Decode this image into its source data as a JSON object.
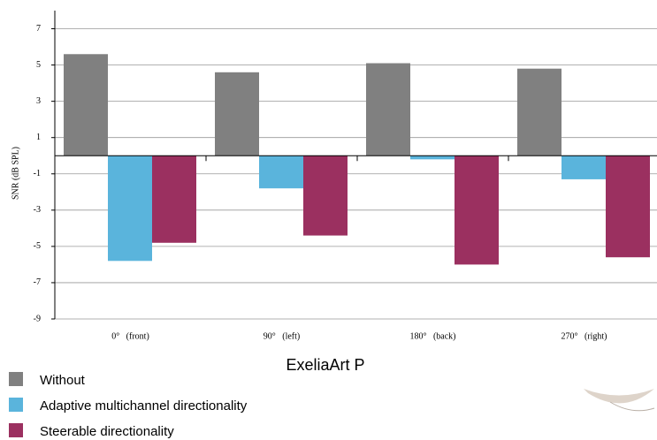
{
  "chart_data": {
    "type": "bar",
    "title": "ExeliaArt P",
    "y_label": "SNR (dB SPL)",
    "categories": [
      "0°   (front)",
      "90°   (left)",
      "180°   (back)",
      "270°   (right)"
    ],
    "series": [
      {
        "name": "Without",
        "color": "#808080",
        "values": [
          5.6,
          4.6,
          5.1,
          4.8
        ]
      },
      {
        "name": "Adaptive multichannel directionality",
        "color": "#5ab4dc",
        "values": [
          -5.8,
          -1.8,
          -0.2,
          -1.3
        ]
      },
      {
        "name": "Steerable directionality",
        "color": "#9b3060",
        "values": [
          -4.8,
          -4.4,
          -6.0,
          -5.6
        ]
      }
    ],
    "ylim": [
      -9,
      8
    ],
    "yticks": [
      7,
      5,
      3,
      1,
      -1,
      -3,
      -5,
      -7,
      -9
    ],
    "grid": true
  }
}
